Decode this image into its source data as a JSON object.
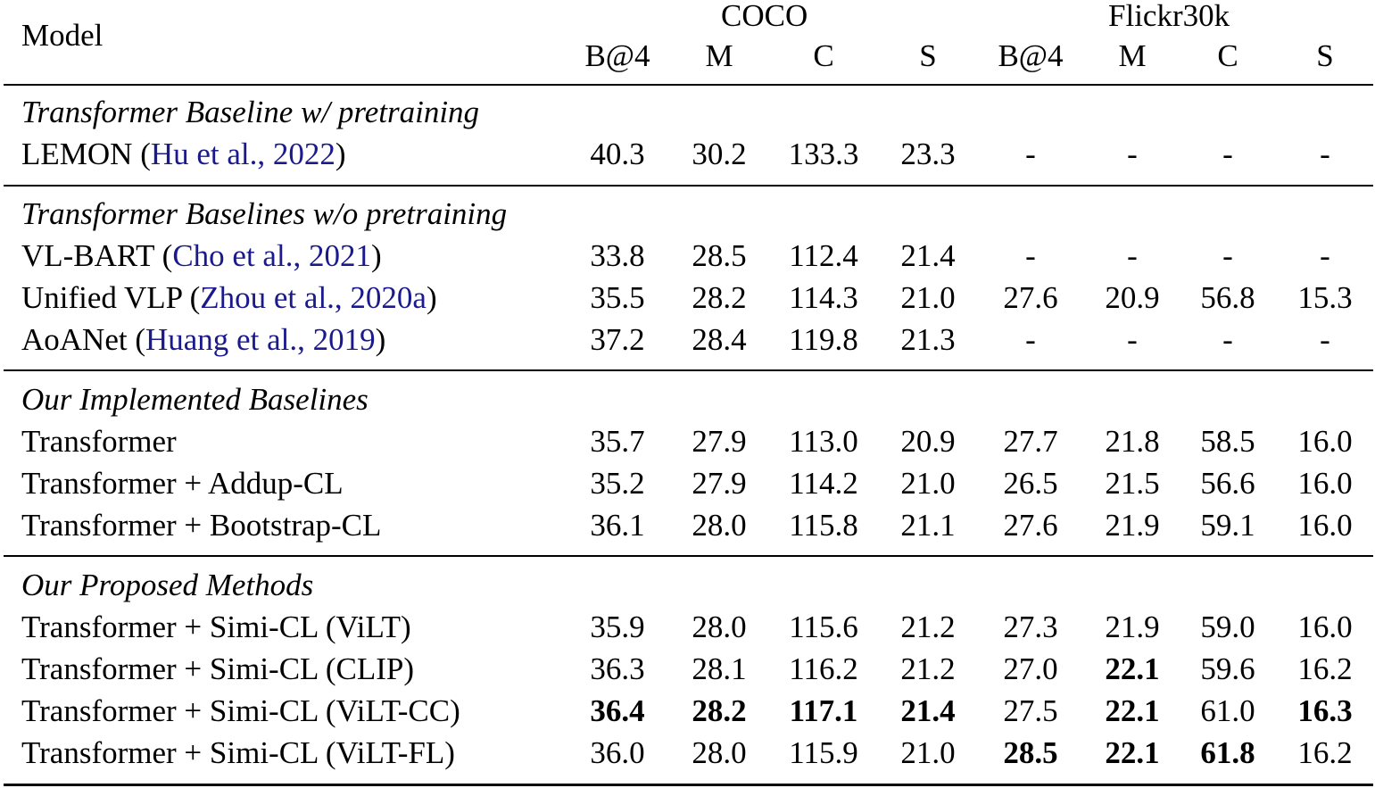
{
  "table": {
    "header": {
      "model_label": "Model",
      "groups": [
        {
          "label": "COCO",
          "columns": [
            "B@4",
            "M",
            "C",
            "S"
          ]
        },
        {
          "label": "Flickr30k",
          "columns": [
            "B@4",
            "M",
            "C",
            "S"
          ]
        }
      ]
    },
    "sections": [
      {
        "title": "Transformer Baseline w/ pretraining",
        "rows": [
          {
            "name": "LEMON",
            "cite_open": " (",
            "cite": "Hu et al., 2022",
            "cite_close": ")",
            "values": [
              "40.3",
              "30.2",
              "133.3",
              "23.3",
              "-",
              "-",
              "-",
              "-"
            ],
            "bold": []
          }
        ]
      },
      {
        "title": "Transformer Baselines w/o pretraining",
        "rows": [
          {
            "name": "VL-BART",
            "cite_open": " (",
            "cite": "Cho et al., 2021",
            "cite_close": ")",
            "values": [
              "33.8",
              "28.5",
              "112.4",
              "21.4",
              "-",
              "-",
              "-",
              "-"
            ],
            "bold": []
          },
          {
            "name": "Unified VLP",
            "cite_open": " (",
            "cite": "Zhou et al., 2020a",
            "cite_close": ")",
            "values": [
              "35.5",
              "28.2",
              "114.3",
              "21.0",
              "27.6",
              "20.9",
              "56.8",
              "15.3"
            ],
            "bold": []
          },
          {
            "name": "AoANet",
            "cite_open": " (",
            "cite": "Huang et al., 2019",
            "cite_close": ")",
            "values": [
              "37.2",
              "28.4",
              "119.8",
              "21.3",
              "-",
              "-",
              "-",
              "-"
            ],
            "bold": []
          }
        ]
      },
      {
        "title": "Our Implemented Baselines",
        "rows": [
          {
            "name": "Transformer",
            "values": [
              "35.7",
              "27.9",
              "113.0",
              "20.9",
              "27.7",
              "21.8",
              "58.5",
              "16.0"
            ],
            "bold": []
          },
          {
            "name": "Transformer + Addup-CL",
            "values": [
              "35.2",
              "27.9",
              "114.2",
              "21.0",
              "26.5",
              "21.5",
              "56.6",
              "16.0"
            ],
            "bold": []
          },
          {
            "name": "Transformer + Bootstrap-CL",
            "values": [
              "36.1",
              "28.0",
              "115.8",
              "21.1",
              "27.6",
              "21.9",
              "59.1",
              "16.0"
            ],
            "bold": []
          }
        ]
      },
      {
        "title": "Our Proposed Methods",
        "rows": [
          {
            "name": "Transformer + Simi-CL (ViLT)",
            "values": [
              "35.9",
              "28.0",
              "115.6",
              "21.2",
              "27.3",
              "21.9",
              "59.0",
              "16.0"
            ],
            "bold": []
          },
          {
            "name": "Transformer + Simi-CL (CLIP)",
            "values": [
              "36.3",
              "28.1",
              "116.2",
              "21.2",
              "27.0",
              "22.1",
              "59.6",
              "16.2"
            ],
            "bold": [
              5
            ]
          },
          {
            "name": "Transformer + Simi-CL (ViLT-CC)",
            "values": [
              "36.4",
              "28.2",
              "117.1",
              "21.4",
              "27.5",
              "22.1",
              "61.0",
              "16.3"
            ],
            "bold": [
              0,
              1,
              2,
              3,
              5,
              7
            ]
          },
          {
            "name": "Transformer + Simi-CL (ViLT-FL)",
            "values": [
              "36.0",
              "28.0",
              "115.9",
              "21.0",
              "28.5",
              "22.1",
              "61.8",
              "16.2"
            ],
            "bold": [
              4,
              5,
              6
            ]
          }
        ]
      }
    ]
  },
  "colors": {
    "citation": "#1a1a8c",
    "text": "#000000"
  }
}
